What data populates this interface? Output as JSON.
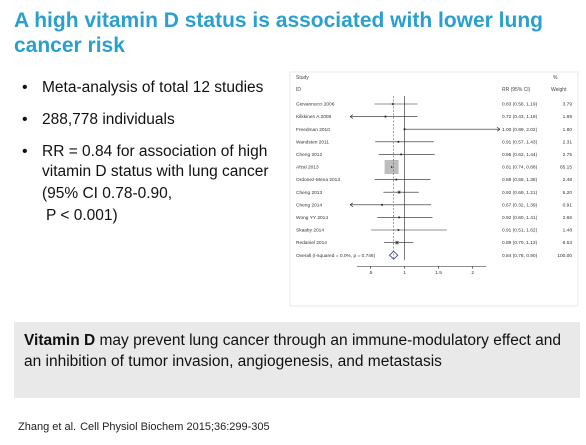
{
  "slide": {
    "title": "A high vitamin D status is associated with lower lung cancer risk",
    "bullets": [
      "Meta-analysis of total 12 studies",
      "288,778 individuals",
      "RR = 0.84 for association of high vitamin D status with lung cancer"
    ],
    "bullet_sub": [
      "(95% CI 0.78-0.90,",
      "P <  0.001)"
    ],
    "callout_bold": "Vitamin D",
    "callout_rest": " may prevent lung cancer through an immune-modulatory effect and an inhibition of tumor invasion, angiogenesis, and metastasis",
    "citation_authors": "Zhang et al.",
    "citation_journal": "Cell Physiol Biochem 2015;36:299-305"
  },
  "chart_data": {
    "type": "forest",
    "header_left": "Study",
    "header_id": "ID",
    "header_rr": "RR (95% CI)",
    "header_pct": "%",
    "header_weight": "Weight",
    "xticks": [
      ".5",
      "1",
      "1.5",
      "2"
    ],
    "xtick_values": [
      0.5,
      1,
      1.5,
      2
    ],
    "xlim": [
      0.2,
      2.4
    ],
    "null_line": 1,
    "overall_line": 0.84,
    "studies": [
      {
        "name": "Giovannucci 2006",
        "rr": 0.83,
        "lo": 0.56,
        "hi": 1.19,
        "rr_text": "0.83 (0.56, 1.19)",
        "weight": "3.79"
      },
      {
        "name": "Kilkkinen A 2008",
        "rr": 0.72,
        "lo": 0.2,
        "hi": 1.19,
        "rr_text": "0.72 (0.43, 1.19)",
        "weight": "1.89",
        "arrow_left": true
      },
      {
        "name": "Freedman 2010",
        "rr": 1.0,
        "lo": 0.99,
        "hi": 2.4,
        "rr_text": "1.00 (0.99, 2.02)",
        "weight": "1.80",
        "arrow_right": true
      },
      {
        "name": "Wandsten 2011",
        "rr": 0.91,
        "lo": 0.57,
        "hi": 1.43,
        "rr_text": "0.91 (0.57, 1.43)",
        "weight": "2.31"
      },
      {
        "name": "Cheng 2012",
        "rr": 0.95,
        "lo": 0.62,
        "hi": 1.44,
        "rr_text": "0.95 (0.62, 1.44)",
        "weight": "2.75"
      },
      {
        "name": "Afzal 2013",
        "rr": 0.81,
        "lo": 0.74,
        "hi": 0.88,
        "rr_text": "0.81 (0.74, 0.88)",
        "weight": "65.15",
        "big": true
      },
      {
        "name": "Ordonez-Mena 2013",
        "rr": 0.88,
        "lo": 0.56,
        "hi": 1.38,
        "rr_text": "0.88 (0.56, 1.38)",
        "weight": "2.48"
      },
      {
        "name": "Cheng 2013",
        "rr": 0.92,
        "lo": 0.69,
        "hi": 1.21,
        "rr_text": "0.92 (0.69, 1.21)",
        "weight": "6.20"
      },
      {
        "name": "Cheng 2014",
        "rr": 0.67,
        "lo": 0.2,
        "hi": 1.39,
        "rr_text": "0.67 (0.32, 1.39)",
        "weight": "0.91",
        "arrow_left": true
      },
      {
        "name": "Wong YY 2014",
        "rr": 0.92,
        "lo": 0.6,
        "hi": 1.41,
        "rr_text": "0.92 (0.60, 1.41)",
        "weight": "2.66"
      },
      {
        "name": "Skaaby 2014",
        "rr": 0.91,
        "lo": 0.51,
        "hi": 1.62,
        "rr_text": "0.91 (0.51, 1.62)",
        "weight": "1.48"
      },
      {
        "name": "Redaniel 2014",
        "rr": 0.89,
        "lo": 0.7,
        "hi": 1.13,
        "rr_text": "0.89 (0.70, 1.13)",
        "weight": "8.53"
      }
    ],
    "overall": {
      "label": "Overall  (I-squared = 0.0%, p = 0.746)",
      "rr": 0.84,
      "lo": 0.78,
      "hi": 0.9,
      "rr_text": "0.84 (0.78, 0.90)",
      "weight": "100.00"
    }
  }
}
